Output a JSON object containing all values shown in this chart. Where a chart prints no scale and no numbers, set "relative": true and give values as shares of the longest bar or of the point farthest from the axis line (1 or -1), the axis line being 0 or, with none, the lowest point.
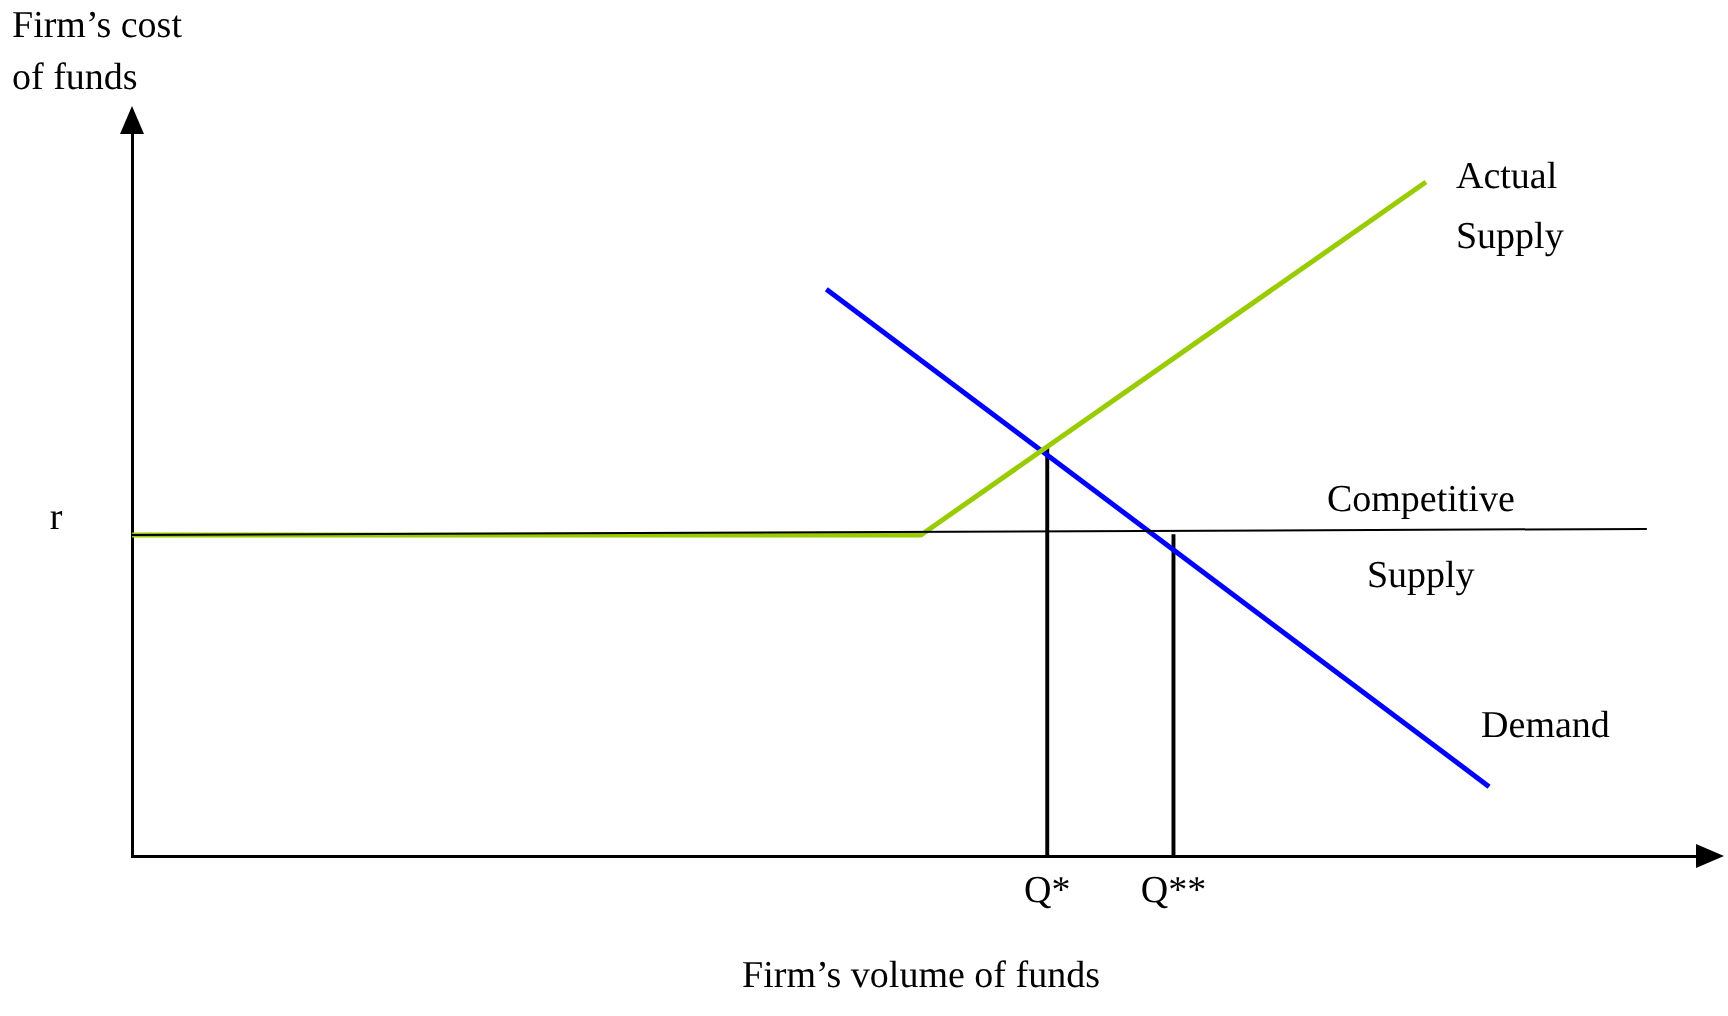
{
  "chart_data": {
    "type": "line",
    "relative": true,
    "ylabel": "Firm’s cost of funds",
    "xlabel": "Firm’s volume of funds",
    "categories": [
      null,
      null,
      null,
      null,
      null,
      null,
      null,
      null,
      null,
      null,
      null,
      null,
      null,
      null,
      null,
      null,
      null,
      null,
      null,
      null,
      null,
      null,
      null,
      null,
      null,
      null,
      null,
      null,
      null,
      "Q*",
      null,
      null,
      null,
      "Q**",
      null,
      null,
      null,
      null,
      null,
      null,
      null,
      null,
      null,
      null,
      null,
      null,
      null,
      null,
      null,
      null,
      null
    ],
    "grid": false,
    "legend": false,
    "marker": "none",
    "line_style": "solid",
    "annotations": [
      "r"
    ],
    "series": [
      {
        "name": "Competitive Supply",
        "color": "#000000",
        "values": [
          0.477,
          null,
          null,
          null,
          null,
          null,
          null,
          null,
          null,
          null,
          null,
          null,
          null,
          null,
          null,
          null,
          null,
          null,
          null,
          null,
          null,
          null,
          null,
          null,
          null,
          null,
          null,
          null,
          null,
          null,
          null,
          null,
          null,
          null,
          null,
          null,
          null,
          null,
          null,
          null,
          null,
          null,
          null,
          null,
          null,
          null,
          null,
          null,
          0.486,
          null,
          null
        ]
      },
      {
        "name": "Actual Supply",
        "color": "#99cc00",
        "values": [
          0.477,
          null,
          null,
          null,
          null,
          null,
          null,
          null,
          null,
          null,
          null,
          null,
          null,
          null,
          null,
          null,
          null,
          null,
          null,
          null,
          null,
          null,
          null,
          null,
          null,
          0.477,
          null,
          null,
          null,
          null,
          null,
          null,
          null,
          null,
          null,
          null,
          null,
          null,
          null,
          null,
          null,
          1,
          null,
          null,
          null,
          null,
          null,
          null,
          null,
          null,
          null
        ]
      },
      {
        "name": "Demand",
        "color": "#0000ff",
        "values": [
          null,
          null,
          null,
          null,
          null,
          null,
          null,
          null,
          null,
          null,
          null,
          null,
          null,
          null,
          null,
          null,
          null,
          null,
          null,
          null,
          null,
          null,
          0.841,
          null,
          null,
          null,
          null,
          null,
          null,
          null,
          null,
          null,
          null,
          null,
          null,
          null,
          null,
          null,
          null,
          null,
          null,
          null,
          null,
          0.104,
          null,
          null,
          null,
          null,
          null,
          null,
          null
        ]
      },
      {
        "type": "bar",
        "color": "#000000",
        "values": [
          null,
          null,
          null,
          null,
          null,
          null,
          null,
          null,
          null,
          null,
          null,
          null,
          null,
          null,
          null,
          null,
          null,
          null,
          null,
          null,
          null,
          null,
          null,
          null,
          null,
          null,
          null,
          null,
          null,
          0.607,
          null,
          null,
          null,
          null,
          null,
          null,
          null,
          null,
          null,
          null,
          null,
          null,
          null,
          null,
          null,
          null,
          null,
          null,
          null,
          null,
          null
        ]
      },
      {
        "type": "bar",
        "color": "#000000",
        "values": [
          null,
          null,
          null,
          null,
          null,
          null,
          null,
          null,
          null,
          null,
          null,
          null,
          null,
          null,
          null,
          null,
          null,
          null,
          null,
          null,
          null,
          null,
          null,
          null,
          null,
          null,
          null,
          null,
          null,
          null,
          null,
          null,
          null,
          0.477,
          null,
          null,
          null,
          null,
          null,
          null,
          null,
          null,
          null,
          null,
          null,
          null,
          null,
          null,
          null,
          null,
          null
        ]
      }
    ]
  }
}
